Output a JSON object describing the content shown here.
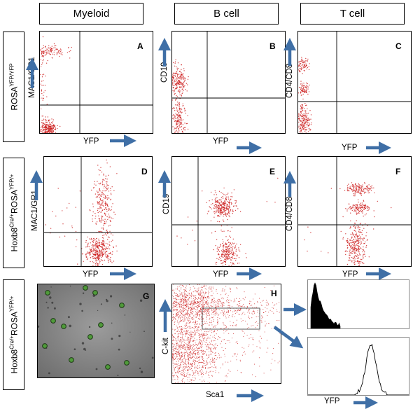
{
  "figure": {
    "column_headers": [
      "Myeloid",
      "B cell",
      "T cell"
    ],
    "rows": [
      {
        "genotype_main": "ROSA",
        "genotype_sup": "YFP/YFP"
      },
      {
        "genotype_main": "Hoxb8",
        "genotype_sup": "Cre/+",
        "genotype_main2": "ROSA",
        "genotype_sup2": "YFP/+"
      },
      {
        "genotype_main": "Hoxb8",
        "genotype_sup": "Cre/+",
        "genotype_main2": "ROSA",
        "genotype_sup2": "YFP/+"
      }
    ],
    "panels": {
      "A": {
        "letter": "A",
        "ylabel": "MAC1/GR1",
        "xlabel": "YFP"
      },
      "B": {
        "letter": "B",
        "ylabel": "CD19",
        "xlabel": "YFP"
      },
      "C": {
        "letter": "C",
        "ylabel": "CD4/CD8",
        "xlabel": "YFP"
      },
      "D": {
        "letter": "D",
        "ylabel": "MAC1/GR1",
        "xlabel": "YFP"
      },
      "E": {
        "letter": "E",
        "ylabel": "CD19",
        "xlabel": "YFP"
      },
      "F": {
        "letter": "F",
        "ylabel": "CD4/CD8",
        "xlabel": "YFP"
      },
      "G": {
        "letter": "G"
      },
      "H": {
        "letter": "H",
        "ylabel": "C-kit",
        "xlabel": "Sca1"
      },
      "hist": {
        "xlabel": "YFP"
      }
    },
    "colors": {
      "dots": "#cc1a1a",
      "arrow": "#3f6fa6",
      "histogram_fill": "#000000"
    }
  }
}
